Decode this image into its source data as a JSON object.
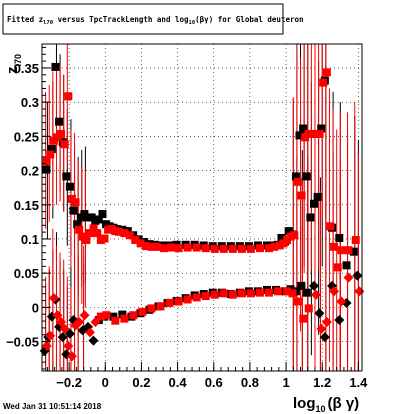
{
  "chart_data": {
    "type": "scatter",
    "title": {
      "main": "Fitted  z",
      "sub1": "l70",
      "mid1": " versus TpcTrackLength and log",
      "sub2": "10",
      "tail": "(βγ) for Global deuteron"
    },
    "xlabel": {
      "main": "log",
      "sub": "10",
      "tail": "(β γ)"
    },
    "ylabel": {
      "main": "z",
      "sub": "l70"
    },
    "xlim": [
      -0.35,
      1.42
    ],
    "ylim": [
      -0.093,
      0.385
    ],
    "xticks": [
      -0.2,
      0,
      0.2,
      0.4,
      0.6,
      0.8,
      1,
      1.2,
      1.4
    ],
    "xtick_labels": [
      "−0.2",
      "0",
      "0.2",
      "0.4",
      "0.6",
      "0.8",
      "1",
      "1.2",
      "1.4"
    ],
    "yticks": [
      -0.05,
      0,
      0.05,
      0.1,
      0.15,
      0.2,
      0.25,
      0.3,
      0.35
    ],
    "ytick_labels": [
      "−0.05",
      "0",
      "0.05",
      "0.1",
      "0.15",
      "0.2",
      "0.25",
      "0.3",
      "0.35"
    ],
    "grid": true,
    "series": [
      {
        "color": "#000000",
        "marker": "square",
        "points": [
          [
            -0.32,
            0.2
          ],
          [
            -0.29,
            0.23
          ],
          [
            -0.27,
            0.35
          ],
          [
            -0.25,
            0.27
          ],
          [
            -0.23,
            0.24
          ],
          [
            -0.21,
            0.19
          ],
          [
            -0.19,
            0.175
          ],
          [
            -0.17,
            0.14
          ],
          [
            -0.15,
            0.12
          ],
          [
            -0.13,
            0.13
          ],
          [
            -0.11,
            0.135
          ],
          [
            -0.09,
            0.13
          ],
          [
            -0.07,
            0.13
          ],
          [
            -0.05,
            0.125
          ],
          [
            -0.03,
            0.127
          ],
          [
            -0.01,
            0.135
          ],
          [
            0.01,
            0.12
          ],
          [
            0.03,
            0.117
          ],
          [
            0.05,
            0.115
          ],
          [
            0.07,
            0.113
          ],
          [
            0.1,
            0.112
          ],
          [
            0.13,
            0.11
          ],
          [
            0.16,
            0.104
          ],
          [
            0.19,
            0.098
          ],
          [
            0.22,
            0.094
          ],
          [
            0.25,
            0.091
          ],
          [
            0.28,
            0.09
          ],
          [
            0.32,
            0.089
          ],
          [
            0.36,
            0.089
          ],
          [
            0.4,
            0.09
          ],
          [
            0.45,
            0.09
          ],
          [
            0.5,
            0.09
          ],
          [
            0.55,
            0.089
          ],
          [
            0.6,
            0.088
          ],
          [
            0.65,
            0.088
          ],
          [
            0.7,
            0.088
          ],
          [
            0.75,
            0.088
          ],
          [
            0.8,
            0.088
          ],
          [
            0.85,
            0.089
          ],
          [
            0.9,
            0.089
          ],
          [
            0.93,
            0.089
          ],
          [
            0.96,
            0.09
          ],
          [
            0.98,
            0.1
          ],
          [
            1.0,
            0.095
          ],
          [
            1.02,
            0.11
          ],
          [
            1.04,
            0.105
          ],
          [
            1.06,
            0.19
          ],
          [
            1.08,
            0.25
          ],
          [
            1.1,
            0.26
          ],
          [
            1.12,
            0.19
          ],
          [
            1.14,
            0.13
          ],
          [
            1.16,
            0.15
          ],
          [
            1.18,
            0.16
          ],
          [
            1.2,
            0.26
          ],
          [
            1.22,
            0.33
          ],
          [
            1.26,
            0.115
          ],
          [
            1.3,
            0.1
          ],
          [
            1.34,
            0.06
          ],
          [
            1.38,
            0.08
          ],
          [
            1.4,
            0.045
          ],
          [
            -0.33,
            -0.065
          ],
          [
            -0.31,
            -0.045
          ],
          [
            -0.29,
            -0.015
          ],
          [
            -0.27,
            0.01
          ],
          [
            -0.25,
            -0.03
          ],
          [
            -0.23,
            -0.045
          ],
          [
            -0.21,
            -0.07
          ],
          [
            -0.19,
            -0.04
          ],
          [
            -0.17,
            -0.02
          ],
          [
            -0.15,
            -0.025
          ],
          [
            -0.12,
            -0.035
          ],
          [
            -0.09,
            -0.03
          ],
          [
            -0.06,
            -0.05
          ],
          [
            -0.03,
            -0.02
          ],
          [
            0.0,
            -0.015
          ],
          [
            0.05,
            -0.015
          ],
          [
            0.1,
            -0.012
          ],
          [
            0.15,
            -0.015
          ],
          [
            0.2,
            -0.01
          ],
          [
            0.25,
            -0.005
          ],
          [
            0.3,
            0.0
          ],
          [
            0.35,
            0.005
          ],
          [
            0.4,
            0.008
          ],
          [
            0.45,
            0.012
          ],
          [
            0.5,
            0.016
          ],
          [
            0.55,
            0.018
          ],
          [
            0.6,
            0.02
          ],
          [
            0.65,
            0.02
          ],
          [
            0.7,
            0.018
          ],
          [
            0.75,
            0.02
          ],
          [
            0.8,
            0.022
          ],
          [
            0.85,
            0.022
          ],
          [
            0.9,
            0.024
          ],
          [
            0.95,
            0.024
          ],
          [
            1.0,
            0.022
          ],
          [
            1.03,
            0.025
          ],
          [
            1.06,
            0.022
          ],
          [
            1.09,
            0.03
          ],
          [
            1.12,
            0.02
          ],
          [
            1.16,
            0.03
          ],
          [
            1.19,
            -0.01
          ],
          [
            1.22,
            -0.045
          ],
          [
            1.26,
            0.03
          ],
          [
            1.3,
            -0.02
          ],
          [
            1.34,
            0.005
          ]
        ]
      },
      {
        "color": "#ff0000",
        "marker": "square",
        "points": [
          [
            -0.33,
            0.215
          ],
          [
            -0.31,
            0.225
          ],
          [
            -0.29,
            0.245
          ],
          [
            -0.27,
            0.25
          ],
          [
            -0.25,
            0.255
          ],
          [
            -0.23,
            0.24
          ],
          [
            -0.21,
            0.31
          ],
          [
            -0.19,
            0.16
          ],
          [
            -0.17,
            0.155
          ],
          [
            -0.15,
            0.115
          ],
          [
            -0.13,
            0.105
          ],
          [
            -0.11,
            0.1
          ],
          [
            -0.09,
            0.11
          ],
          [
            -0.07,
            0.117
          ],
          [
            -0.05,
            0.11
          ],
          [
            -0.03,
            0.1
          ],
          [
            -0.01,
            0.102
          ],
          [
            0.01,
            0.115
          ],
          [
            0.03,
            0.116
          ],
          [
            0.05,
            0.113
          ],
          [
            0.07,
            0.112
          ],
          [
            0.1,
            0.11
          ],
          [
            0.13,
            0.107
          ],
          [
            0.16,
            0.1
          ],
          [
            0.19,
            0.095
          ],
          [
            0.22,
            0.091
          ],
          [
            0.25,
            0.09
          ],
          [
            0.28,
            0.09
          ],
          [
            0.32,
            0.088
          ],
          [
            0.36,
            0.089
          ],
          [
            0.4,
            0.088
          ],
          [
            0.45,
            0.089
          ],
          [
            0.5,
            0.089
          ],
          [
            0.55,
            0.088
          ],
          [
            0.6,
            0.087
          ],
          [
            0.65,
            0.087
          ],
          [
            0.7,
            0.087
          ],
          [
            0.75,
            0.087
          ],
          [
            0.8,
            0.087
          ],
          [
            0.85,
            0.088
          ],
          [
            0.9,
            0.088
          ],
          [
            0.93,
            0.09
          ],
          [
            0.96,
            0.092
          ],
          [
            0.98,
            0.095
          ],
          [
            1.0,
            0.1
          ],
          [
            1.02,
            0.105
          ],
          [
            1.04,
            0.107
          ],
          [
            1.06,
            0.185
          ],
          [
            1.08,
            0.165
          ],
          [
            1.1,
            0.25
          ],
          [
            1.12,
            0.255
          ],
          [
            1.14,
            0.255
          ],
          [
            1.16,
            0.255
          ],
          [
            1.18,
            0.255
          ],
          [
            1.2,
            0.33
          ],
          [
            1.22,
            0.345
          ],
          [
            1.24,
            0.12
          ],
          [
            1.26,
            0.09
          ],
          [
            1.28,
            0.06
          ],
          [
            1.3,
            0.085
          ],
          [
            1.34,
            0.085
          ],
          [
            1.38,
            0.1
          ],
          [
            1.4,
            0.025
          ],
          [
            -0.33,
            -0.055
          ],
          [
            -0.31,
            -0.04
          ],
          [
            -0.29,
            0.015
          ],
          [
            -0.27,
            -0.01
          ],
          [
            -0.25,
            -0.02
          ],
          [
            -0.23,
            -0.03
          ],
          [
            -0.21,
            -0.055
          ],
          [
            -0.19,
            -0.07
          ],
          [
            -0.17,
            -0.025
          ],
          [
            -0.15,
            -0.02
          ],
          [
            -0.12,
            -0.01
          ],
          [
            -0.09,
            -0.035
          ],
          [
            -0.06,
            -0.02
          ],
          [
            -0.03,
            -0.012
          ],
          [
            0.0,
            -0.01
          ],
          [
            0.05,
            -0.018
          ],
          [
            0.1,
            -0.015
          ],
          [
            0.15,
            -0.01
          ],
          [
            0.2,
            -0.005
          ],
          [
            0.25,
            0.0
          ],
          [
            0.3,
            0.003
          ],
          [
            0.35,
            0.008
          ],
          [
            0.4,
            0.01
          ],
          [
            0.45,
            0.013
          ],
          [
            0.5,
            0.016
          ],
          [
            0.55,
            0.018
          ],
          [
            0.6,
            0.02
          ],
          [
            0.65,
            0.022
          ],
          [
            0.7,
            0.02
          ],
          [
            0.75,
            0.022
          ],
          [
            0.8,
            0.022
          ],
          [
            0.85,
            0.023
          ],
          [
            0.9,
            0.023
          ],
          [
            0.95,
            0.025
          ],
          [
            1.0,
            0.025
          ],
          [
            1.03,
            0.022
          ],
          [
            1.06,
            0.01
          ],
          [
            1.09,
            -0.015
          ],
          [
            1.12,
            0.0
          ],
          [
            1.16,
            0.02
          ],
          [
            1.19,
            -0.03
          ],
          [
            1.22,
            -0.02
          ],
          [
            1.26,
            0.025
          ],
          [
            1.3,
            0.01
          ],
          [
            1.34,
            0.045
          ]
        ]
      }
    ]
  },
  "footer": {
    "datestamp": "Wed Jan 31 10:51:14 2018"
  }
}
